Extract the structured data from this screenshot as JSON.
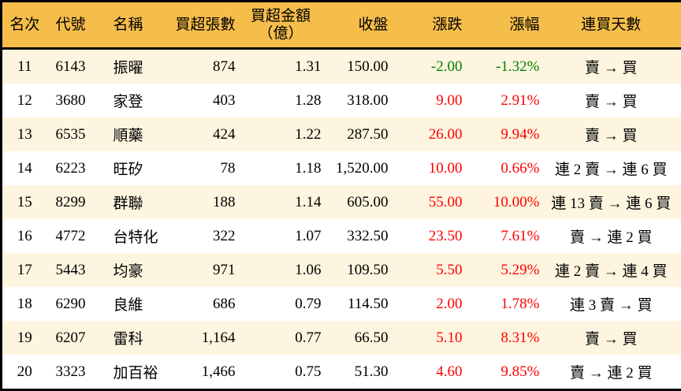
{
  "colors": {
    "header_bg": "#F5BD4A",
    "row_alt_bg": "#FDF5DF",
    "up_red": "#FF0000",
    "down_green": "#008000",
    "border": "#000000"
  },
  "chart_data": {
    "type": "table",
    "title": "",
    "columns": [
      "名次",
      "代號",
      "名稱",
      "買超張數",
      "買超金額\n（億）",
      "收盤",
      "漲跌",
      "漲幅",
      "連買天數"
    ],
    "rows": [
      [
        "11",
        "6143",
        "振曜",
        "874",
        "1.31",
        "150.00",
        "-2.00",
        "-1.32%",
        "賣 → 買"
      ],
      [
        "12",
        "3680",
        "家登",
        "403",
        "1.28",
        "318.00",
        "9.00",
        "2.91%",
        "賣 → 買"
      ],
      [
        "13",
        "6535",
        "順藥",
        "424",
        "1.22",
        "287.50",
        "26.00",
        "9.94%",
        "賣 → 買"
      ],
      [
        "14",
        "6223",
        "旺矽",
        "78",
        "1.18",
        "1,520.00",
        "10.00",
        "0.66%",
        "連 2 賣 → 連 6 買"
      ],
      [
        "15",
        "8299",
        "群聯",
        "188",
        "1.14",
        "605.00",
        "55.00",
        "10.00%",
        "連 13 賣 → 連 6 買"
      ],
      [
        "16",
        "4772",
        "台特化",
        "322",
        "1.07",
        "332.50",
        "23.50",
        "7.61%",
        "賣 → 連 2 買"
      ],
      [
        "17",
        "5443",
        "均豪",
        "971",
        "1.06",
        "109.50",
        "5.50",
        "5.29%",
        "連 2 賣 → 連 4 買"
      ],
      [
        "18",
        "6290",
        "良維",
        "686",
        "0.79",
        "114.50",
        "2.00",
        "1.78%",
        "連 3 賣 → 買"
      ],
      [
        "19",
        "6207",
        "雷科",
        "1,164",
        "0.77",
        "66.50",
        "5.10",
        "8.31%",
        "賣 → 買"
      ],
      [
        "20",
        "3323",
        "加百裕",
        "1,466",
        "0.75",
        "51.30",
        "4.60",
        "9.85%",
        "賣 → 連 2 買"
      ]
    ]
  }
}
